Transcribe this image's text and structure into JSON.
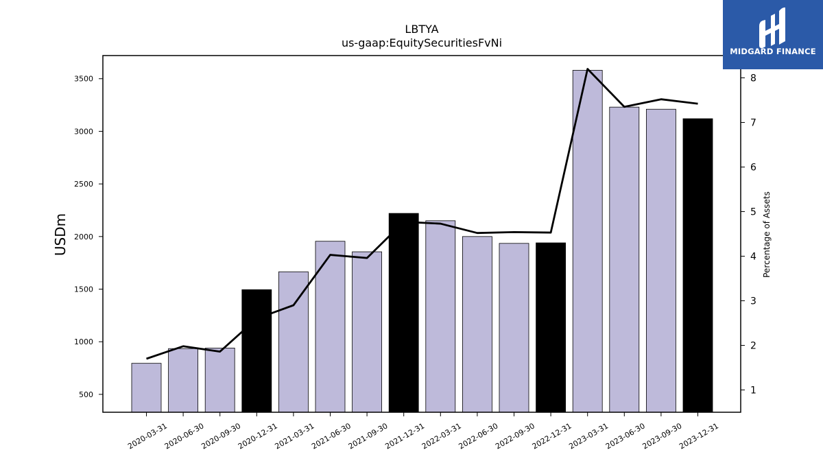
{
  "chart_data": {
    "type": "bar",
    "title": "LBTYA",
    "subtitle": "us-gaap:EquitySecuritiesFvNi",
    "ylabel": "USDm",
    "y2label": "Percentage of Assets",
    "categories": [
      "2020-03-31",
      "2020-06-30",
      "2020-09-30",
      "2020-12-31",
      "2021-03-31",
      "2021-06-30",
      "2021-09-30",
      "2021-12-31",
      "2022-03-31",
      "2022-06-30",
      "2022-09-30",
      "2022-12-31",
      "2023-03-31",
      "2023-06-30",
      "2023-09-30",
      "2023-12-31"
    ],
    "series": [
      {
        "type": "bar",
        "values": [
          795,
          935,
          940,
          1495,
          1665,
          1955,
          1855,
          2220,
          2150,
          2000,
          1935,
          1940,
          3580,
          3230,
          3210,
          3120
        ],
        "year_end": [
          false,
          false,
          false,
          true,
          false,
          false,
          false,
          true,
          false,
          false,
          false,
          true,
          false,
          false,
          false,
          true
        ]
      },
      {
        "type": "line",
        "axis": "right",
        "values": [
          1.7,
          1.98,
          1.86,
          2.6,
          2.9,
          4.03,
          3.96,
          4.77,
          4.73,
          4.52,
          4.54,
          4.53,
          8.2,
          7.35,
          7.52,
          7.42
        ]
      }
    ],
    "ylim": [
      330,
      3720
    ],
    "yticks": [
      500,
      1000,
      1500,
      2000,
      2500,
      3000,
      3500
    ],
    "y2lim": [
      0.5,
      8.5
    ],
    "y2ticks": [
      1,
      2,
      3,
      4,
      5,
      6,
      7,
      8
    ],
    "colors": {
      "bar": "#bebada",
      "bar_year_end": "#000000",
      "line": "#000000"
    }
  },
  "logo": {
    "text": "MIDGARD FINANCE",
    "background": "#2b5aa8"
  }
}
